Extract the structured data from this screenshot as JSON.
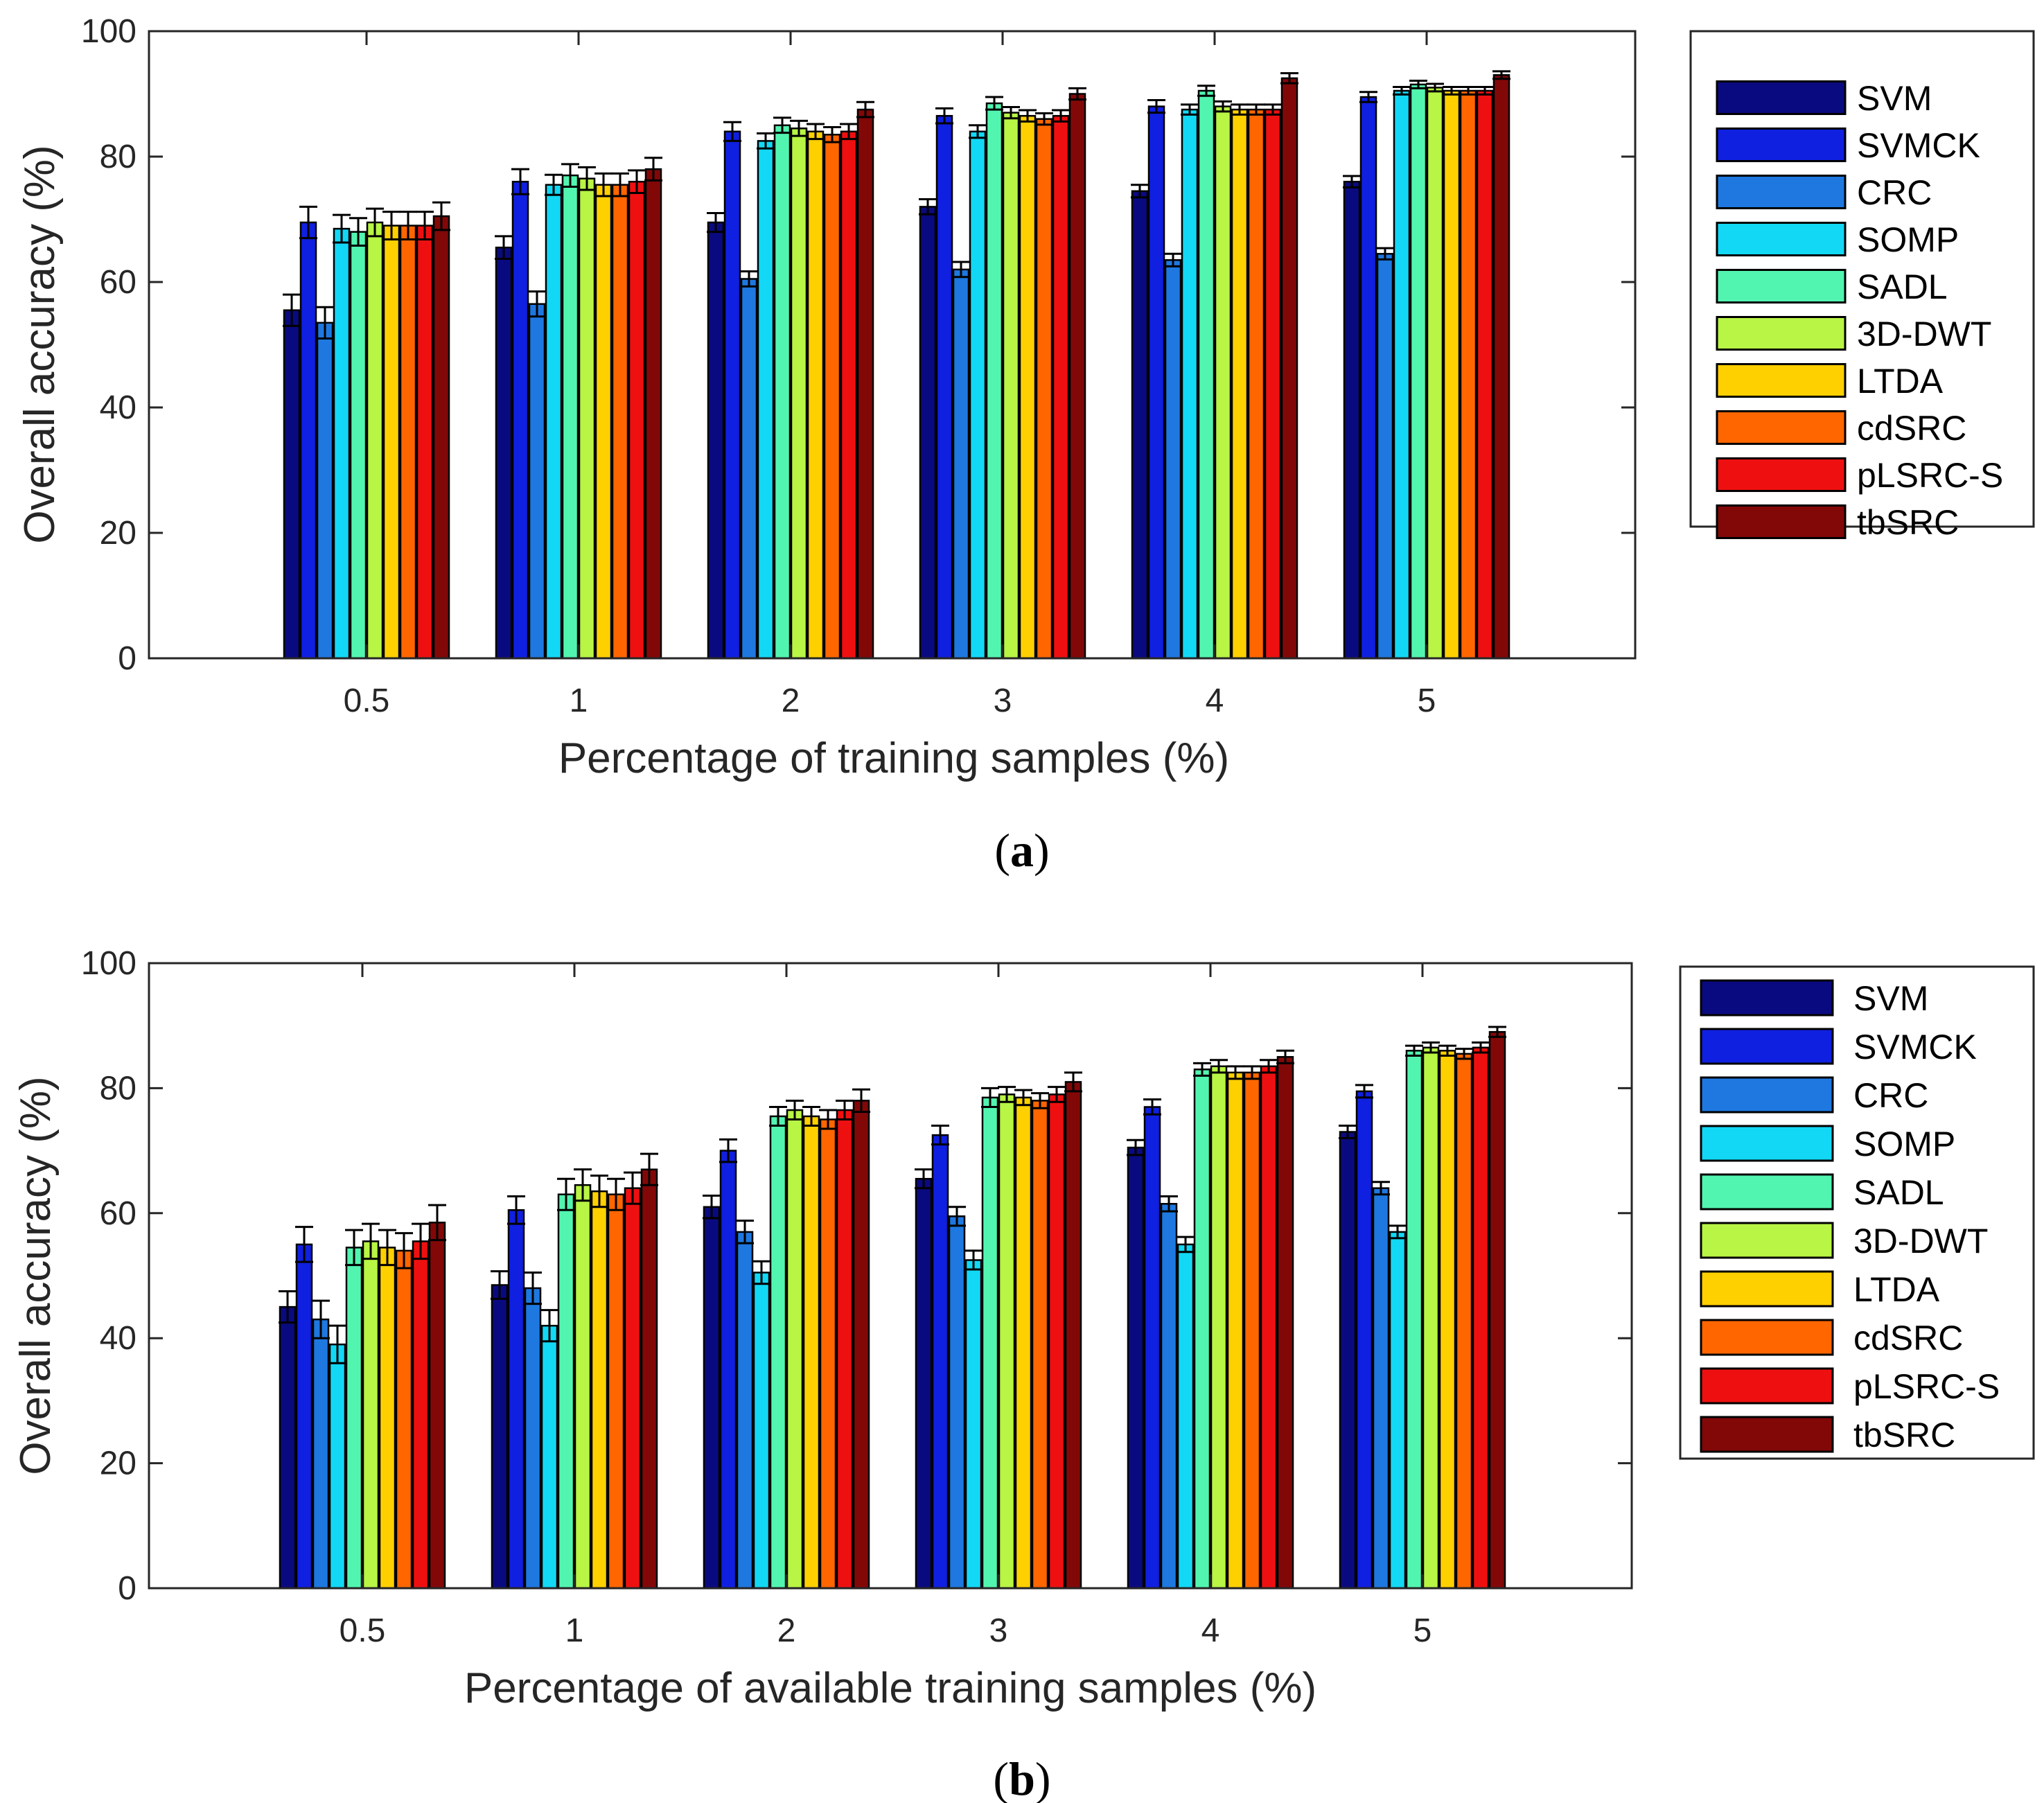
{
  "figure": {
    "subfigure_labels": [
      {
        "open": "(",
        "letter": "a",
        "close": ")"
      },
      {
        "open": "(",
        "letter": "b",
        "close": ")"
      }
    ]
  },
  "methods": [
    {
      "name": "SVM",
      "color": "#0a0a80"
    },
    {
      "name": "SVMCK",
      "color": "#1020e0"
    },
    {
      "name": "CRC",
      "color": "#1e78e0"
    },
    {
      "name": "SOMP",
      "color": "#12d8f5"
    },
    {
      "name": "SADL",
      "color": "#52f5b0"
    },
    {
      "name": "3D-DWT",
      "color": "#b8f545"
    },
    {
      "name": "LTDA",
      "color": "#ffd000"
    },
    {
      "name": "cdSRC",
      "color": "#ff6600"
    },
    {
      "name": "pLSRC-S",
      "color": "#ee1010"
    },
    {
      "name": "tbSRC",
      "color": "#820808"
    }
  ],
  "chart_data": [
    {
      "type": "bar",
      "panel": "a",
      "title": "",
      "categories": [
        "0.5",
        "1",
        "2",
        "3",
        "4",
        "5"
      ],
      "xlabel": "Percentage of training samples (%)",
      "ylabel": "Overall accuracy (%)",
      "ylim": [
        0,
        100
      ],
      "yticks": [
        "0",
        "20",
        "40",
        "60",
        "80",
        "100"
      ],
      "grid": false,
      "legend_position": "outside-right",
      "series": [
        {
          "name": "SVM",
          "values": [
            55.5,
            65.5,
            69.5,
            72,
            74.5,
            76
          ],
          "errors": [
            2.5,
            1.8,
            1.5,
            1.2,
            1,
            0.9
          ]
        },
        {
          "name": "SVMCK",
          "values": [
            69.5,
            76,
            84,
            86.5,
            88,
            89.5
          ],
          "errors": [
            2.5,
            2,
            1.5,
            1.2,
            1,
            0.8
          ]
        },
        {
          "name": "CRC",
          "values": [
            53.5,
            56.5,
            60.5,
            62,
            63.5,
            64.5
          ],
          "errors": [
            2.5,
            2,
            1.2,
            1.2,
            1,
            0.9
          ]
        },
        {
          "name": "SOMP",
          "values": [
            68.5,
            75.5,
            82.5,
            84,
            87.5,
            90.5
          ],
          "errors": [
            2.2,
            1.6,
            1.2,
            1,
            0.8,
            0.6
          ]
        },
        {
          "name": "SADL",
          "values": [
            68,
            77,
            85,
            88.5,
            90.5,
            91.5
          ],
          "errors": [
            2.2,
            1.8,
            1.2,
            1,
            0.8,
            0.6
          ]
        },
        {
          "name": "3D-DWT",
          "values": [
            69.5,
            76.5,
            84.5,
            87,
            88,
            91
          ],
          "errors": [
            2.2,
            1.8,
            1.2,
            0.9,
            0.8,
            0.6
          ]
        },
        {
          "name": "LTDA",
          "values": [
            69,
            75.5,
            84,
            86.5,
            87.5,
            90.5
          ],
          "errors": [
            2.2,
            1.8,
            1.2,
            0.9,
            0.8,
            0.6
          ]
        },
        {
          "name": "cdSRC",
          "values": [
            69,
            75.5,
            83.5,
            86,
            87.5,
            90.5
          ],
          "errors": [
            2.2,
            1.8,
            1.2,
            0.9,
            0.8,
            0.6
          ]
        },
        {
          "name": "pLSRC-S",
          "values": [
            69,
            76,
            84,
            86.5,
            87.5,
            90.5
          ],
          "errors": [
            2.2,
            1.8,
            1.2,
            0.9,
            0.8,
            0.6
          ]
        },
        {
          "name": "tbSRC",
          "values": [
            70.5,
            78,
            87.5,
            90,
            92.5,
            93
          ],
          "errors": [
            2.2,
            1.8,
            1.2,
            0.9,
            0.8,
            0.6
          ]
        }
      ]
    },
    {
      "type": "bar",
      "panel": "b",
      "title": "",
      "categories": [
        "0.5",
        "1",
        "2",
        "3",
        "4",
        "5"
      ],
      "xlabel": "Percentage of available training samples (%)",
      "ylabel": "Overall accuracy (%)",
      "ylim": [
        0,
        100
      ],
      "yticks": [
        "0",
        "20",
        "40",
        "60",
        "80",
        "100"
      ],
      "grid": false,
      "legend_position": "outside-right",
      "series": [
        {
          "name": "SVM",
          "values": [
            45,
            48.5,
            61,
            65.5,
            70.5,
            73
          ],
          "errors": [
            2.5,
            2.2,
            1.8,
            1.5,
            1.2,
            1
          ]
        },
        {
          "name": "SVMCK",
          "values": [
            55,
            60.5,
            70,
            72.5,
            77,
            79.5
          ],
          "errors": [
            2.8,
            2.2,
            1.8,
            1.5,
            1.2,
            1
          ]
        },
        {
          "name": "CRC",
          "values": [
            43,
            48,
            57,
            59.5,
            61.5,
            64
          ],
          "errors": [
            3,
            2.5,
            1.8,
            1.5,
            1.2,
            1
          ]
        },
        {
          "name": "SOMP",
          "values": [
            39,
            42,
            50.5,
            52.5,
            55,
            57
          ],
          "errors": [
            3,
            2.5,
            1.8,
            1.5,
            1.2,
            1
          ]
        },
        {
          "name": "SADL",
          "values": [
            54.5,
            63,
            75.5,
            78.5,
            83,
            86
          ],
          "errors": [
            2.8,
            2.5,
            1.5,
            1.5,
            1,
            0.8
          ]
        },
        {
          "name": "3D-DWT",
          "values": [
            55.5,
            64.5,
            76.5,
            79,
            83.5,
            86.5
          ],
          "errors": [
            2.8,
            2.5,
            1.5,
            1.2,
            1,
            0.8
          ]
        },
        {
          "name": "LTDA",
          "values": [
            54.5,
            63.5,
            75.5,
            78.5,
            82.5,
            86
          ],
          "errors": [
            2.8,
            2.5,
            1.5,
            1.2,
            1,
            0.8
          ]
        },
        {
          "name": "cdSRC",
          "values": [
            54,
            63,
            75,
            78,
            82.5,
            85.5
          ],
          "errors": [
            2.8,
            2.5,
            1.5,
            1.2,
            1,
            0.8
          ]
        },
        {
          "name": "pLSRC-S",
          "values": [
            55.5,
            64,
            76.5,
            79,
            83.5,
            86.5
          ],
          "errors": [
            2.8,
            2.5,
            1.5,
            1.2,
            1,
            0.8
          ]
        },
        {
          "name": "tbSRC",
          "values": [
            58.5,
            67,
            78,
            81,
            85,
            89
          ],
          "errors": [
            2.8,
            2.5,
            1.8,
            1.5,
            1,
            0.8
          ]
        }
      ]
    }
  ]
}
